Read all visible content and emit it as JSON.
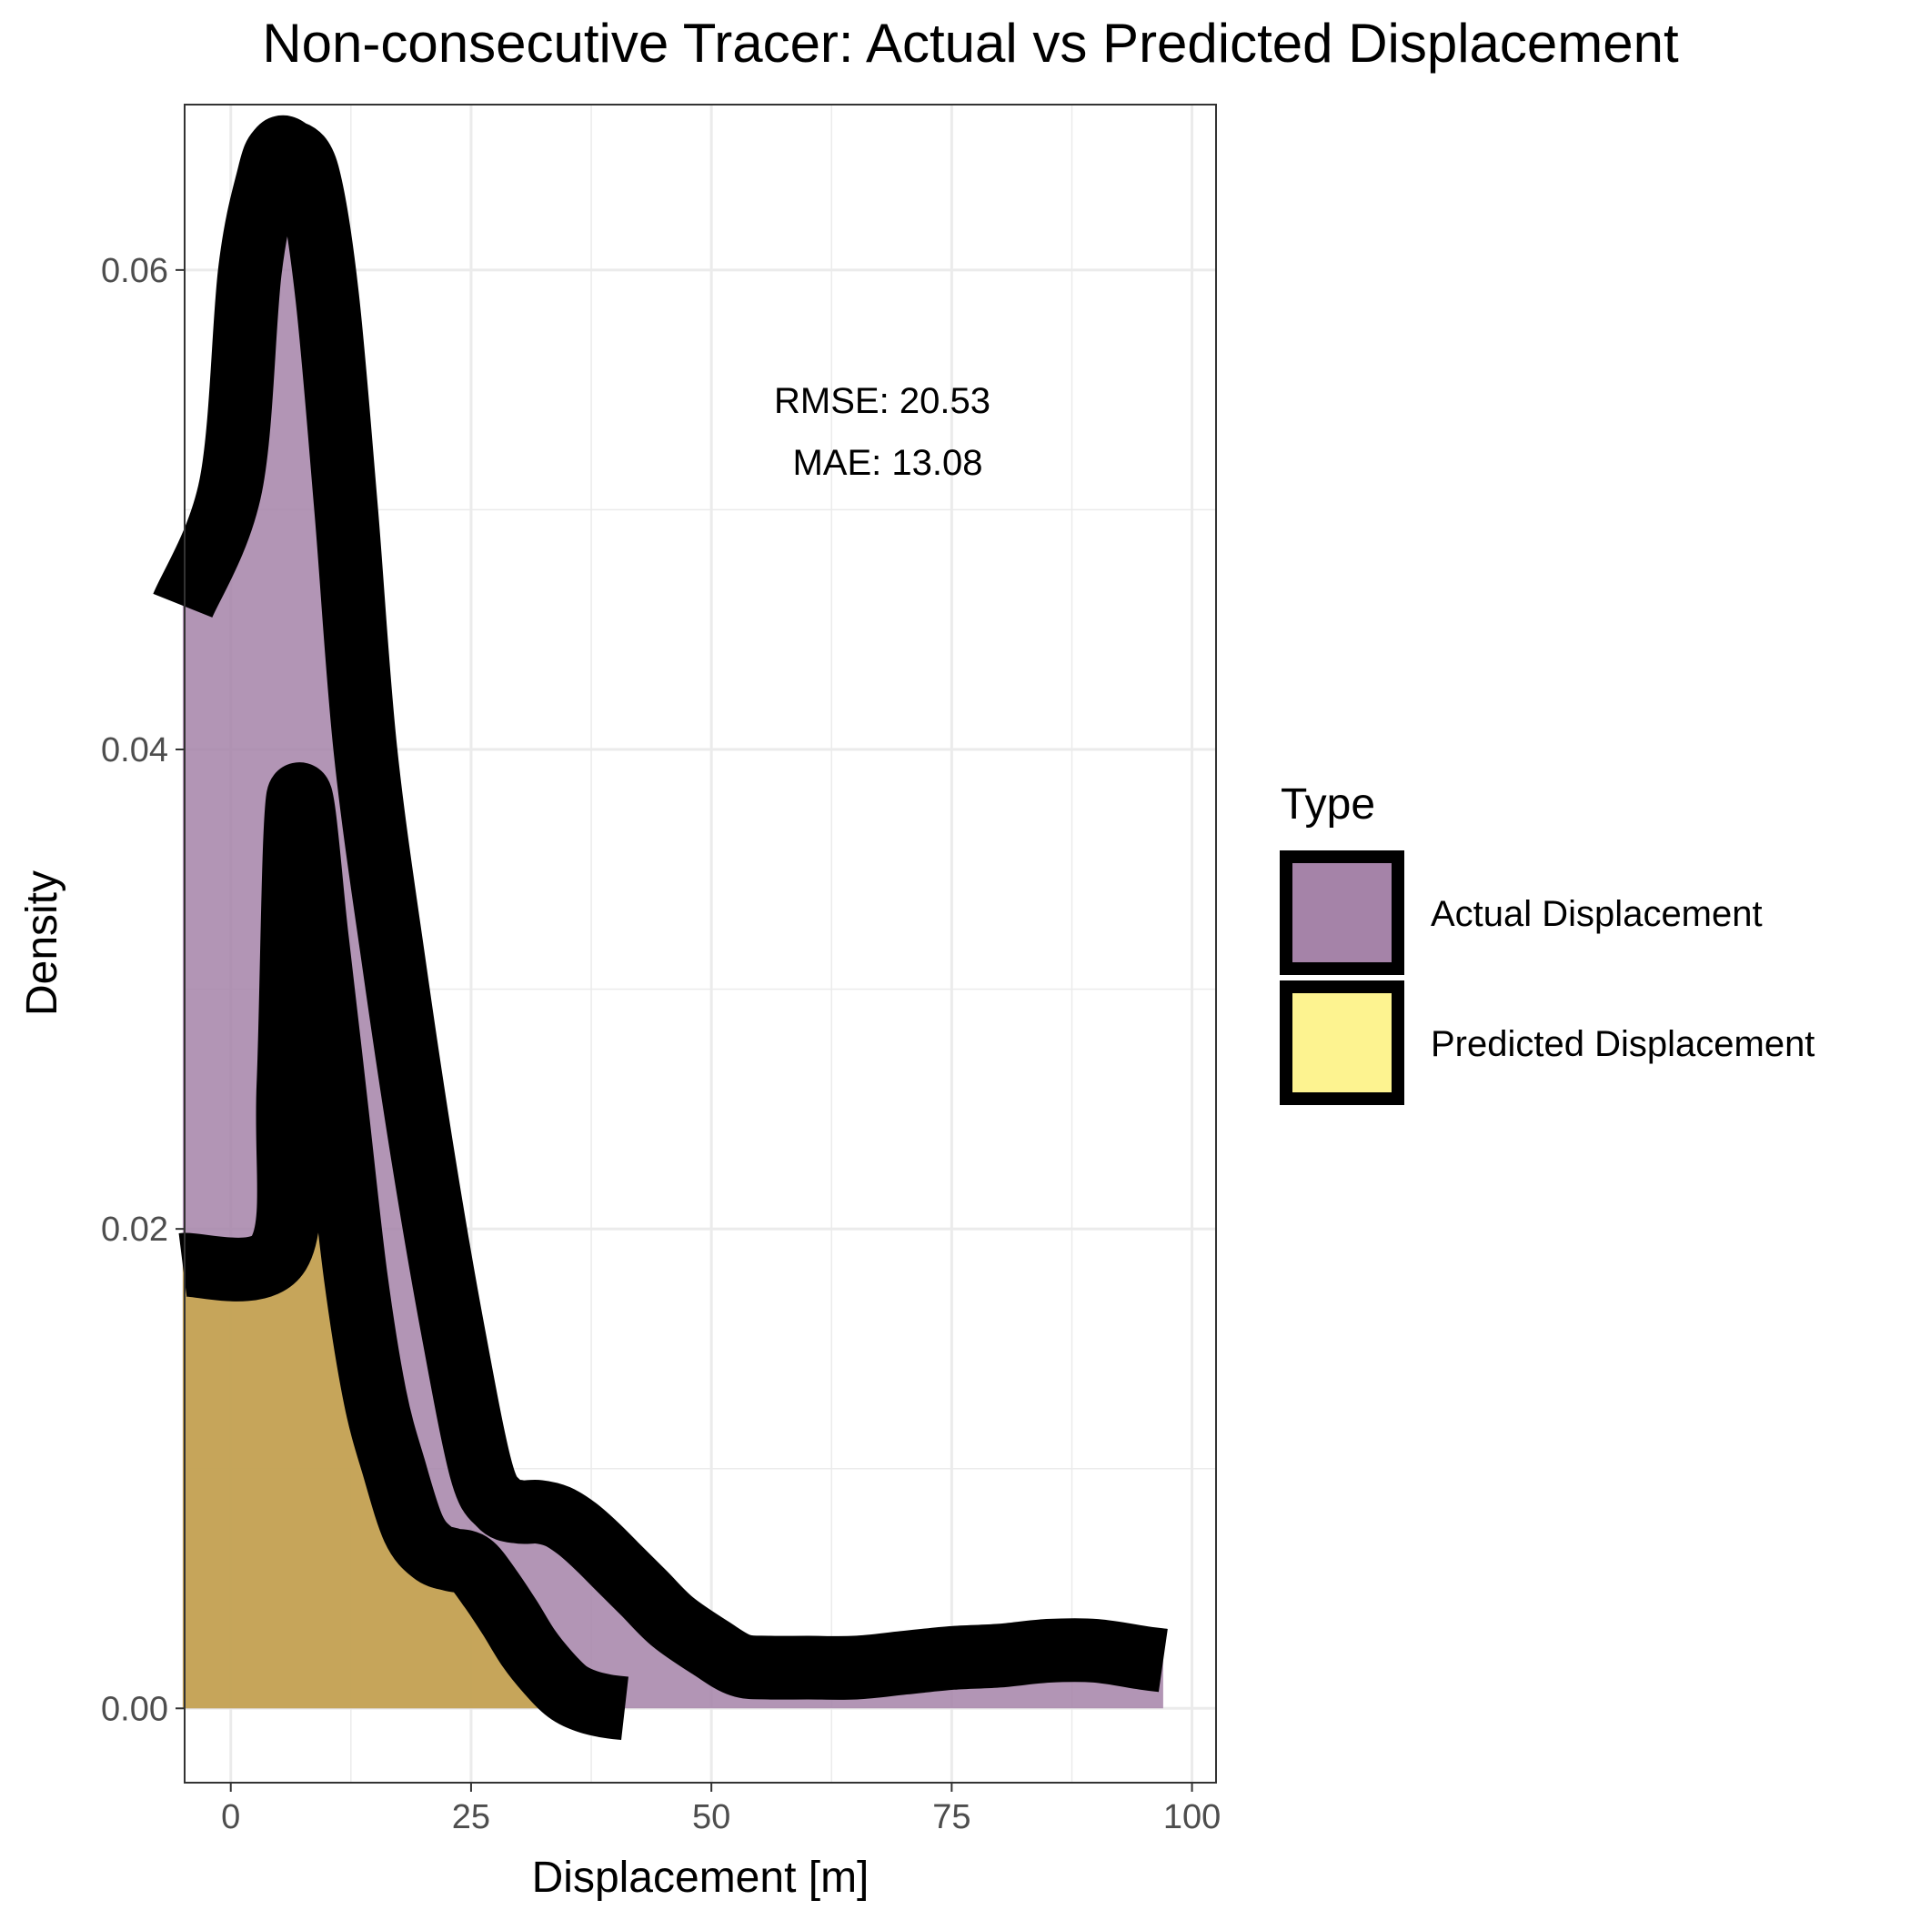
{
  "chart_data": {
    "type": "area",
    "title": "Non-consecutive Tracer: Actual vs Predicted Displacement",
    "xlabel": "Displacement [m]",
    "ylabel": "Density",
    "xlim": [
      -4.8,
      102.5
    ],
    "ylim": [
      -0.0031,
      0.0669
    ],
    "x_ticks": [
      0,
      25,
      50,
      75,
      100
    ],
    "x_tick_labels": [
      "0",
      "25",
      "50",
      "75",
      "100"
    ],
    "y_ticks": [
      0.0,
      0.02,
      0.04,
      0.06
    ],
    "y_tick_labels": [
      "0.00",
      "0.02",
      "0.04",
      "0.06"
    ],
    "grid": true,
    "legend": {
      "title": "Type",
      "position": "right",
      "entries": [
        "Actual Displacement",
        "Predicted Displacement"
      ]
    },
    "annotations": [
      "RMSE: 20.53",
      "MAE: 13.08"
    ],
    "series": [
      {
        "name": "Actual Displacement",
        "color": "#a583a8",
        "x": [
          -5,
          0,
          2,
          4,
          5,
          6,
          8,
          10,
          12,
          14,
          17,
          20,
          23,
          26,
          28,
          30,
          32,
          34,
          36,
          38,
          40,
          43,
          46,
          50,
          53,
          56,
          60,
          65,
          70,
          75,
          80,
          85,
          90,
          95,
          97
        ],
        "y": [
          0.046,
          0.051,
          0.06,
          0.064,
          0.065,
          0.065,
          0.064,
          0.059,
          0.05,
          0.04,
          0.031,
          0.023,
          0.016,
          0.01,
          0.0085,
          0.0082,
          0.0082,
          0.008,
          0.0075,
          0.0068,
          0.006,
          0.0048,
          0.0036,
          0.0025,
          0.0018,
          0.0017,
          0.0017,
          0.0017,
          0.0019,
          0.0021,
          0.0022,
          0.0024,
          0.0024,
          0.0021,
          0.002
        ]
      },
      {
        "name": "Predicted Displacement",
        "color": "#fdf390",
        "x": [
          -5,
          5,
          6,
          7,
          9,
          11,
          13,
          15,
          17,
          19,
          21,
          23,
          25,
          27,
          29,
          31,
          33,
          35,
          37,
          39,
          41
        ],
        "y": [
          0.0185,
          0.019,
          0.026,
          0.038,
          0.032,
          0.025,
          0.018,
          0.013,
          0.01,
          0.0075,
          0.0065,
          0.0062,
          0.006,
          0.005,
          0.0038,
          0.0025,
          0.0015,
          0.0007,
          0.0003,
          0.0001,
          0.0
        ]
      }
    ]
  }
}
